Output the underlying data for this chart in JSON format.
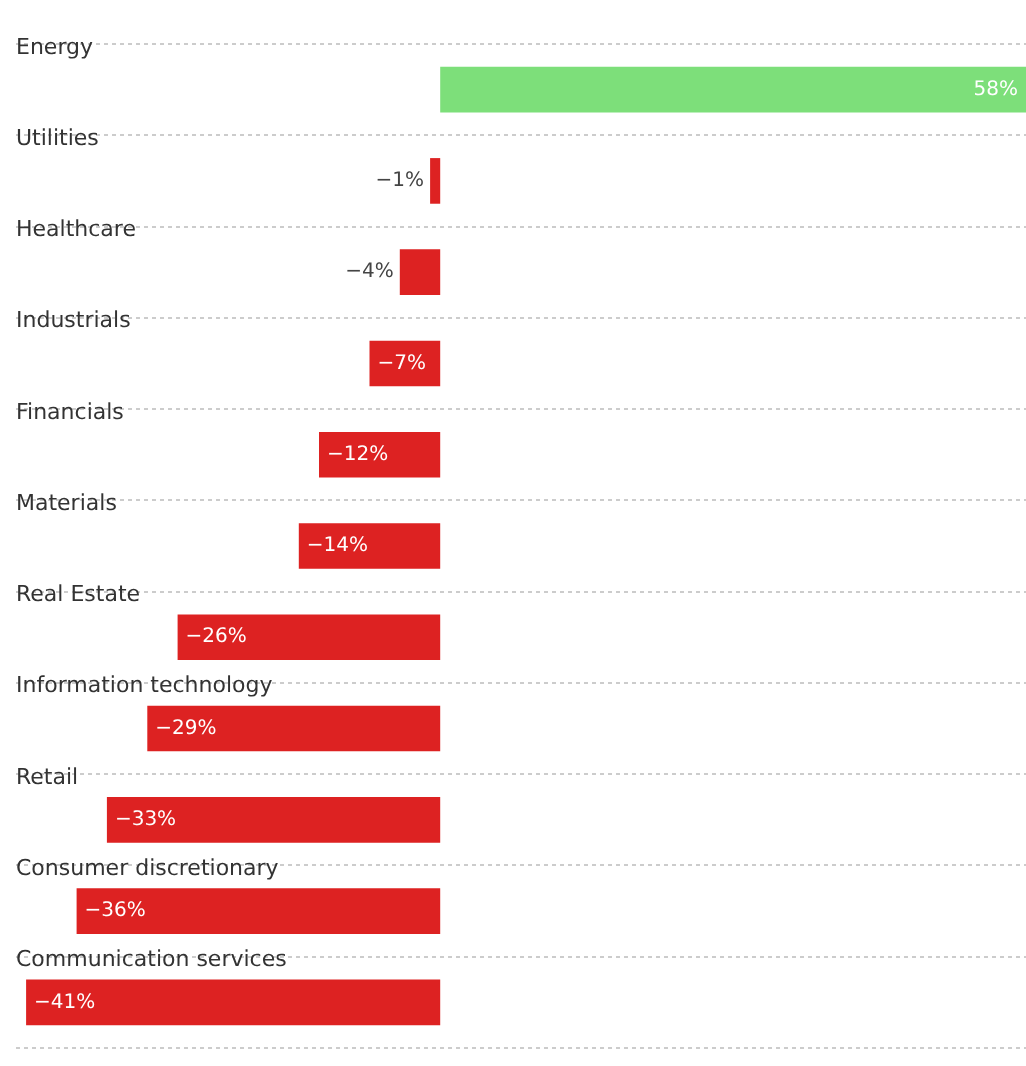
{
  "chart_data": {
    "type": "bar",
    "orientation": "horizontal",
    "categories": [
      "Energy",
      "Utilities",
      "Healthcare",
      "Industrials",
      "Financials",
      "Materials",
      "Real Estate",
      "Information technology",
      "Retail",
      "Consumer discretionary",
      "Communication services"
    ],
    "values": [
      58,
      -1,
      -4,
      -7,
      -12,
      -14,
      -26,
      -29,
      -33,
      -36,
      -41
    ],
    "colors": [
      "#7ddf7a",
      "#dd2222",
      "#dd2222",
      "#dd2222",
      "#dd2222",
      "#dd2222",
      "#dd2222",
      "#dd2222",
      "#dd2222",
      "#dd2222",
      "#dd2222"
    ],
    "value_labels": [
      "58%",
      "−1%",
      "−4%",
      "−7%",
      "−12%",
      "−14%",
      "−26%",
      "−29%",
      "−33%",
      "−36%",
      "−41%"
    ],
    "xlim": [
      -42,
      58
    ],
    "grid": "y",
    "tick_labels": "y"
  }
}
